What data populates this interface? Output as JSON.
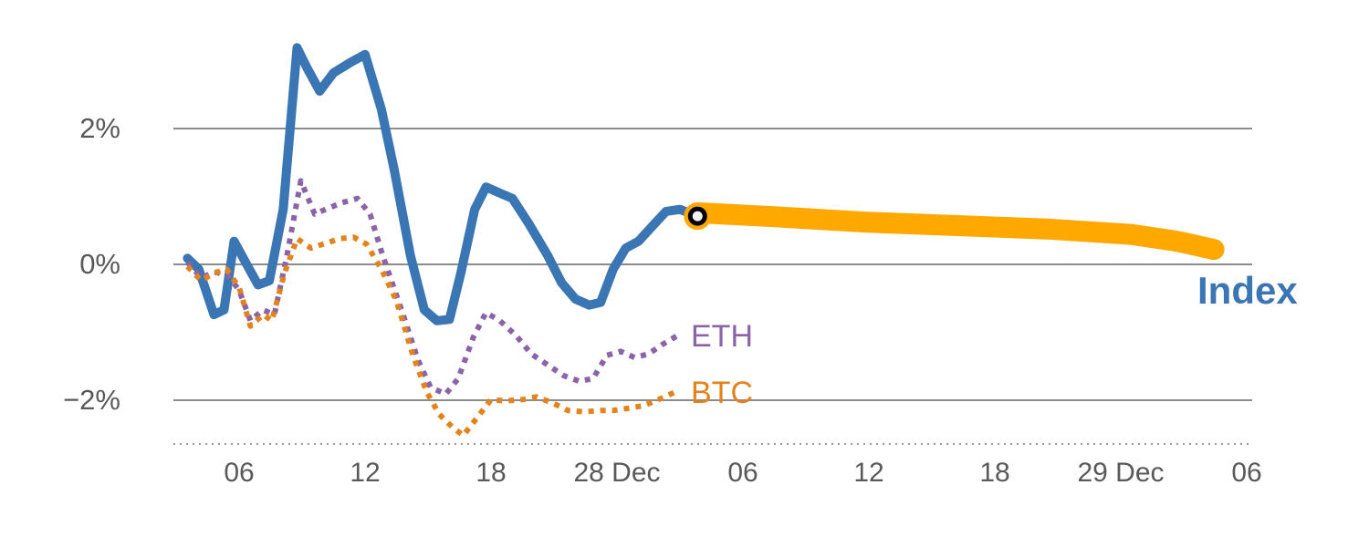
{
  "chart_data": {
    "type": "line",
    "title": "",
    "description": "Cumulative percent performance of a crypto Index (solid blue, with orange forecast band and current-point marker) versus ETH and BTC (dotted lines).",
    "y_axis": {
      "ylim": [
        -2.95,
        3.45
      ],
      "unit": "%",
      "grid": true,
      "ticks": [
        {
          "label": "2%",
          "value": 2
        },
        {
          "label": "0%",
          "value": 0
        },
        {
          "label": "−2%",
          "value": -2
        }
      ]
    },
    "x_axis": {
      "tick_labels": [
        "06",
        "12",
        "18",
        "28 Dec",
        "06",
        "12",
        "18",
        "29 Dec",
        "06"
      ],
      "baseline_style": "dotted"
    },
    "legend_position": "inline-end-labels",
    "series": [
      {
        "id": "index",
        "label": "Index",
        "color": "#3b76b4",
        "style": "solid",
        "points": [
          [
            -0.41,
            0.09
          ],
          [
            -0.32,
            -0.07
          ],
          [
            -0.2,
            -0.74
          ],
          [
            -0.12,
            -0.67
          ],
          [
            -0.04,
            0.34
          ],
          [
            0.06,
            0.0
          ],
          [
            0.15,
            -0.3
          ],
          [
            0.24,
            -0.24
          ],
          [
            0.35,
            0.81
          ],
          [
            0.46,
            3.19
          ],
          [
            0.54,
            2.89
          ],
          [
            0.64,
            2.55
          ],
          [
            0.75,
            2.82
          ],
          [
            0.89,
            2.98
          ],
          [
            1.0,
            3.09
          ],
          [
            1.13,
            2.28
          ],
          [
            1.23,
            1.41
          ],
          [
            1.36,
            0.13
          ],
          [
            1.47,
            -0.67
          ],
          [
            1.57,
            -0.83
          ],
          [
            1.67,
            -0.81
          ],
          [
            1.76,
            -0.13
          ],
          [
            1.87,
            0.81
          ],
          [
            1.96,
            1.14
          ],
          [
            2.07,
            1.05
          ],
          [
            2.17,
            0.97
          ],
          [
            2.3,
            0.6
          ],
          [
            2.45,
            0.13
          ],
          [
            2.56,
            -0.27
          ],
          [
            2.67,
            -0.51
          ],
          [
            2.78,
            -0.6
          ],
          [
            2.87,
            -0.56
          ],
          [
            2.97,
            -0.07
          ],
          [
            3.07,
            0.24
          ],
          [
            3.17,
            0.34
          ],
          [
            3.28,
            0.56
          ],
          [
            3.39,
            0.78
          ],
          [
            3.5,
            0.81
          ],
          [
            3.64,
            0.71
          ]
        ]
      },
      {
        "id": "index-forecast",
        "label": "",
        "color": "#ffa800",
        "style": "band",
        "points": [
          [
            3.64,
            0.76
          ],
          [
            4.26,
            0.7
          ],
          [
            4.99,
            0.62
          ],
          [
            5.71,
            0.57
          ],
          [
            6.43,
            0.52
          ],
          [
            7.09,
            0.44
          ],
          [
            7.45,
            0.34
          ],
          [
            7.74,
            0.22
          ]
        ]
      },
      {
        "id": "eth",
        "label": "ETH",
        "color": "#8a63a8",
        "style": "dotted",
        "points": [
          [
            -0.41,
            0.03
          ],
          [
            -0.3,
            -0.2
          ],
          [
            -0.2,
            -0.11
          ],
          [
            -0.09,
            -0.16
          ],
          [
            0.0,
            -0.38
          ],
          [
            0.09,
            -0.83
          ],
          [
            0.19,
            -0.67
          ],
          [
            0.28,
            -0.74
          ],
          [
            0.38,
            0.13
          ],
          [
            0.49,
            1.23
          ],
          [
            0.6,
            0.74
          ],
          [
            0.71,
            0.83
          ],
          [
            0.82,
            0.91
          ],
          [
            0.94,
            0.97
          ],
          [
            1.04,
            0.74
          ],
          [
            1.14,
            0.13
          ],
          [
            1.29,
            -0.67
          ],
          [
            1.42,
            -1.41
          ],
          [
            1.52,
            -1.81
          ],
          [
            1.64,
            -1.91
          ],
          [
            1.74,
            -1.68
          ],
          [
            1.86,
            -1.07
          ],
          [
            1.96,
            -0.71
          ],
          [
            2.07,
            -0.83
          ],
          [
            2.2,
            -1.05
          ],
          [
            2.32,
            -1.32
          ],
          [
            2.45,
            -1.48
          ],
          [
            2.58,
            -1.64
          ],
          [
            2.7,
            -1.72
          ],
          [
            2.81,
            -1.68
          ],
          [
            2.92,
            -1.34
          ],
          [
            3.03,
            -1.28
          ],
          [
            3.14,
            -1.37
          ],
          [
            3.25,
            -1.32
          ],
          [
            3.36,
            -1.18
          ],
          [
            3.48,
            -1.05
          ]
        ]
      },
      {
        "id": "btc",
        "label": "BTC",
        "color": "#e2831d",
        "style": "dotted",
        "points": [
          [
            -0.41,
            -0.03
          ],
          [
            -0.3,
            -0.24
          ],
          [
            -0.2,
            -0.13
          ],
          [
            -0.1,
            -0.07
          ],
          [
            0.0,
            -0.34
          ],
          [
            0.09,
            -0.91
          ],
          [
            0.19,
            -0.74
          ],
          [
            0.26,
            -0.83
          ],
          [
            0.36,
            -0.13
          ],
          [
            0.46,
            0.38
          ],
          [
            0.57,
            0.24
          ],
          [
            0.67,
            0.3
          ],
          [
            0.8,
            0.38
          ],
          [
            0.91,
            0.4
          ],
          [
            1.01,
            0.3
          ],
          [
            1.13,
            -0.07
          ],
          [
            1.25,
            -0.54
          ],
          [
            1.38,
            -1.34
          ],
          [
            1.49,
            -1.88
          ],
          [
            1.59,
            -2.21
          ],
          [
            1.69,
            -2.39
          ],
          [
            1.78,
            -2.52
          ],
          [
            1.88,
            -2.28
          ],
          [
            2.0,
            -1.99
          ],
          [
            2.12,
            -2.01
          ],
          [
            2.25,
            -1.99
          ],
          [
            2.36,
            -1.95
          ],
          [
            2.49,
            -2.04
          ],
          [
            2.61,
            -2.15
          ],
          [
            2.74,
            -2.17
          ],
          [
            2.87,
            -2.15
          ],
          [
            2.97,
            -2.15
          ],
          [
            3.09,
            -2.12
          ],
          [
            3.21,
            -2.08
          ],
          [
            3.33,
            -1.99
          ],
          [
            3.46,
            -1.88
          ]
        ]
      }
    ],
    "marker": {
      "x": 3.64,
      "y": 0.71,
      "halo_color": "#ffa800",
      "ring_color": "#000000",
      "center_color": "#f2f2f2"
    },
    "colors": {
      "grid": "#8c8c8c",
      "axis_text": "#595959",
      "baseline": "#999999"
    }
  }
}
